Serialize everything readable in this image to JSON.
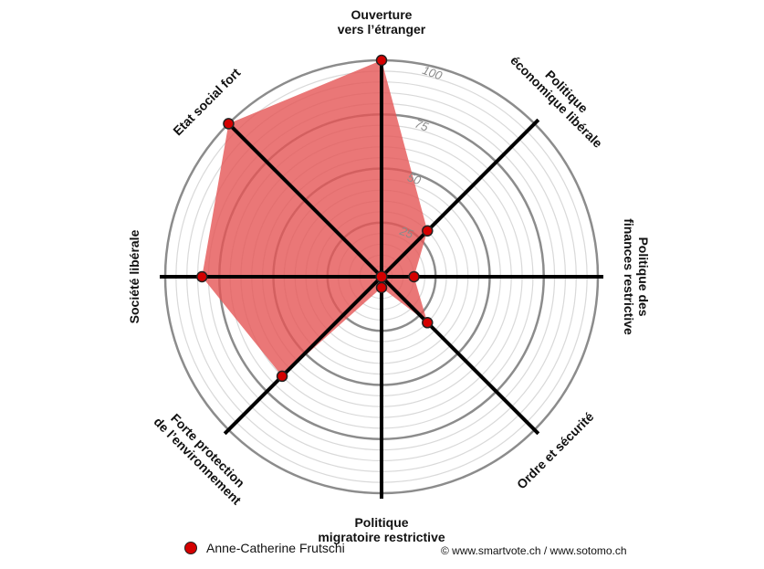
{
  "chart_data": {
    "type": "radar",
    "axes": [
      "Ouverture\nvers l’étranger",
      "Politique\néconomique libérale",
      "Politique des\nfinances restrictive",
      "Ordre et sécurité",
      "Politique\nmigratoire restrictive",
      "Forte protection\nde l’environnement",
      "Société libérale",
      "Etat social fort"
    ],
    "tick_values": [
      25,
      50,
      75,
      100
    ],
    "rlim": [
      0,
      100
    ],
    "grid": true,
    "series": [
      {
        "name": "Anne-Catherine Frutschi",
        "color": "#d40000",
        "fill": "#e55555",
        "values": [
          100,
          30,
          15,
          30,
          5,
          65,
          83,
          100
        ]
      }
    ],
    "legend_position": "bottom-left"
  },
  "legend": {
    "label": "Anne-Catherine Frutschi"
  },
  "credit": "© www.smartvote.ch / www.sotomo.ch"
}
